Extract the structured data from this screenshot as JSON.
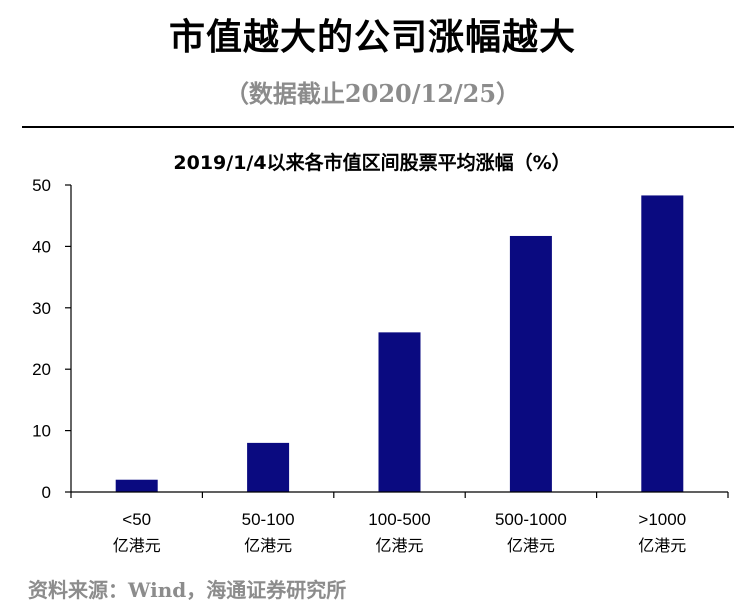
{
  "header": {
    "title": "市值越大的公司涨幅越大",
    "subtitle": "（数据截止2020/12/25）"
  },
  "footer": {
    "source": "资料来源：Wind，海通证券研究所"
  },
  "colors": {
    "bar": "#0a0a80",
    "subtitle": "#8c8c8c",
    "axis": "#000000"
  },
  "chart_data": {
    "type": "bar",
    "title": "2019/1/4以来各市值区间股票平均涨幅（%）",
    "xlabel": "",
    "ylabel": "",
    "categories": [
      [
        "<50",
        "亿港元"
      ],
      [
        "50-100",
        "亿港元"
      ],
      [
        "100-500",
        "亿港元"
      ],
      [
        "500-1000",
        "亿港元"
      ],
      [
        ">1000",
        "亿港元"
      ]
    ],
    "values": [
      2,
      8,
      26,
      41.7,
      48.3
    ],
    "ylim": [
      0,
      50
    ],
    "yticks": [
      0,
      10,
      20,
      30,
      40,
      50
    ],
    "grid": false,
    "legend": "none"
  }
}
